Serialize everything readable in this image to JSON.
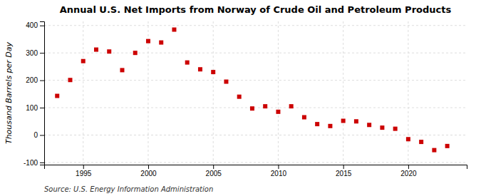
{
  "chart_data": {
    "type": "scatter",
    "title": "Annual U.S. Net Imports from Norway of Crude Oil and Petroleum Products",
    "ylabel": "Thousand Barrels per Day",
    "annotations": [
      "Source: U.S. Energy Information Administration"
    ],
    "x": [
      1993,
      1994,
      1995,
      1996,
      1997,
      1998,
      1999,
      2000,
      2001,
      2002,
      2003,
      2004,
      2005,
      2006,
      2007,
      2008,
      2009,
      2010,
      2011,
      2012,
      2013,
      2014,
      2015,
      2016,
      2017,
      2018,
      2019,
      2020,
      2021,
      2022,
      2023
    ],
    "values": [
      143,
      201,
      270,
      312,
      305,
      237,
      300,
      343,
      338,
      385,
      265,
      240,
      230,
      195,
      140,
      97,
      105,
      85,
      105,
      65,
      40,
      33,
      52,
      50,
      37,
      27,
      23,
      -15,
      -25,
      -55,
      -40
    ],
    "color": "#cc0000",
    "marker": "square",
    "xlim": [
      1992.0,
      2024.5
    ],
    "ylim": [
      -108,
      415
    ],
    "xticks": [
      1995,
      2000,
      2005,
      2010,
      2015,
      2020
    ],
    "yticks": [
      -100,
      0,
      100,
      200,
      300,
      400
    ],
    "grid": true
  }
}
